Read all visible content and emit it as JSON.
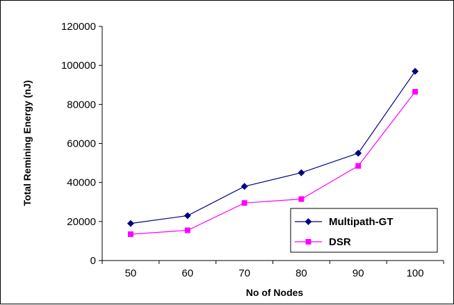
{
  "chart_data": {
    "type": "line",
    "title": "",
    "xlabel": "No of Nodes",
    "ylabel": "Total Remining Energy (nJ)",
    "categories": [
      "50",
      "60",
      "70",
      "80",
      "90",
      "100"
    ],
    "ylim": [
      0,
      120000
    ],
    "yticks": [
      0,
      20000,
      40000,
      60000,
      80000,
      100000,
      120000
    ],
    "grid": false,
    "legend_position": "bottom-right",
    "series": [
      {
        "name": "Multipath-GT",
        "color": "#000080",
        "marker": "diamond",
        "values": [
          19000,
          23000,
          38000,
          45000,
          55000,
          97000
        ]
      },
      {
        "name": "DSR",
        "color": "#FF00FF",
        "marker": "square",
        "values": [
          13500,
          15500,
          29500,
          31500,
          48500,
          86500
        ]
      }
    ]
  }
}
